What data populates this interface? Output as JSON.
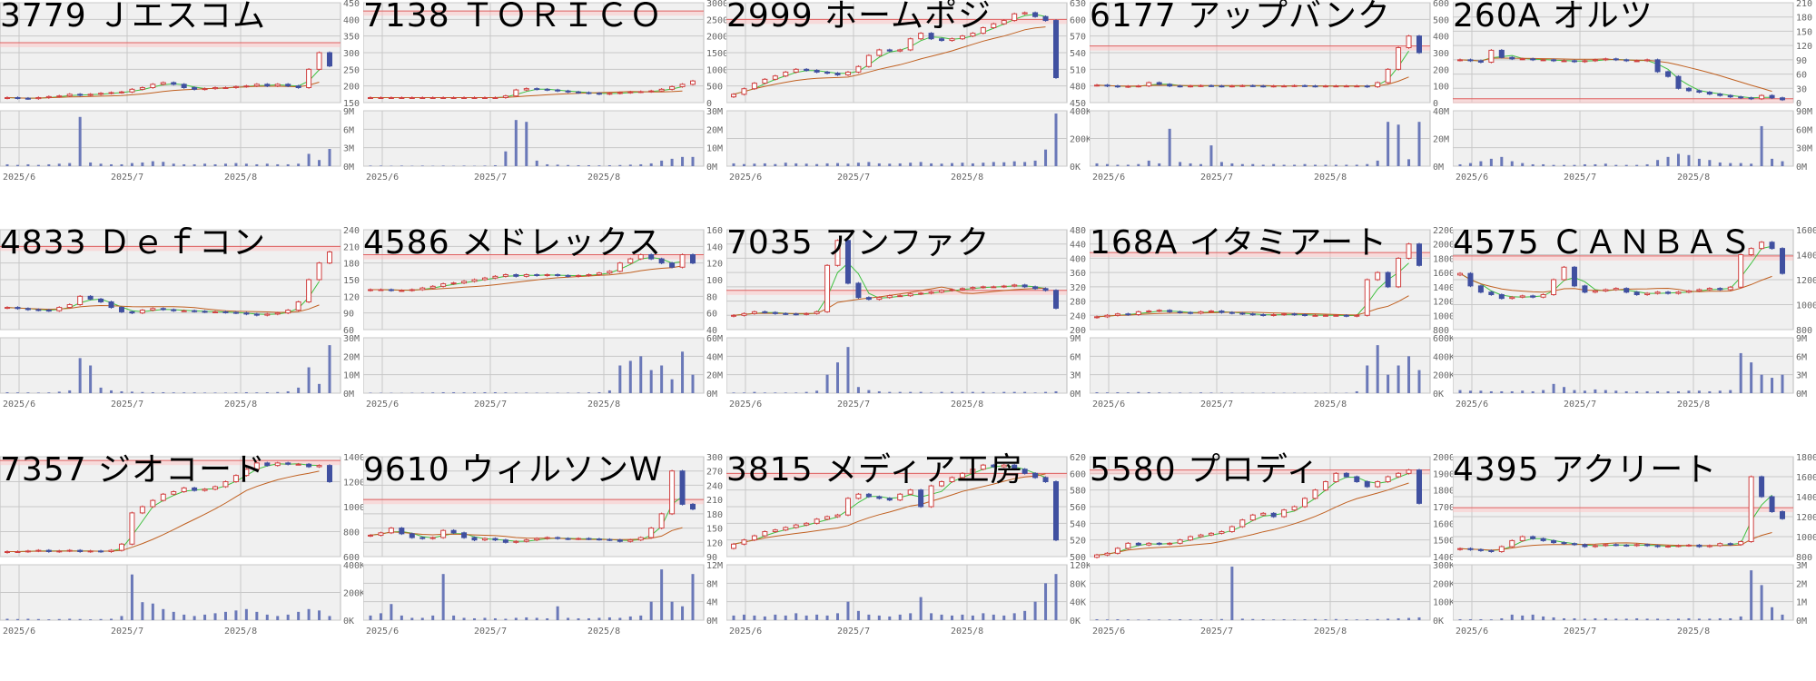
{
  "chart_data": [
    {
      "type": "candlestick",
      "title": "3779 Ｊエスコム",
      "price_ticks": [
        450,
        400,
        350,
        300,
        250,
        200,
        150
      ],
      "volume_ticks": [
        "9M",
        "6M",
        "3M",
        "0M"
      ],
      "volume_max": 9,
      "x_ticks": [
        "2025/6",
        "2025/7",
        "2025/8"
      ],
      "ref_line": 330,
      "closes": [
        165,
        163,
        162,
        165,
        168,
        170,
        175,
        172,
        175,
        178,
        180,
        182,
        190,
        195,
        205,
        210,
        205,
        195,
        190,
        192,
        195,
        195,
        198,
        200,
        205,
        200,
        205,
        200,
        195,
        250,
        300,
        260
      ],
      "volumes": [
        0.3,
        0.2,
        0.3,
        0.2,
        0.3,
        0.4,
        0.5,
        8,
        0.6,
        0.4,
        0.3,
        0.3,
        0.5,
        0.6,
        0.8,
        0.7,
        0.4,
        0.3,
        0.3,
        0.4,
        0.3,
        0.4,
        0.5,
        0.4,
        0.3,
        0.4,
        0.3,
        0.3,
        0.4,
        2,
        1,
        2.8
      ]
    },
    {
      "type": "candlestick",
      "title": "7138 ＴＯＲＩＣＯ",
      "price_ticks": [
        3000,
        2500,
        2000,
        1500,
        1000,
        500,
        0
      ],
      "volume_ticks": [
        "30M",
        "20M",
        "10M",
        "0M"
      ],
      "volume_max": 30,
      "x_ticks": [
        "2025/6",
        "2025/7",
        "2025/8"
      ],
      "ref_line": 2750,
      "closes": [
        150,
        150,
        150,
        150,
        150,
        150,
        150,
        150,
        150,
        150,
        150,
        150,
        150,
        200,
        380,
        420,
        400,
        380,
        350,
        320,
        300,
        280,
        260,
        280,
        300,
        320,
        330,
        350,
        400,
        480,
        550,
        650
      ],
      "volumes": [
        0.3,
        0.3,
        0.2,
        0.3,
        0.2,
        0.3,
        0.2,
        0.3,
        0.2,
        0.3,
        0.2,
        0.3,
        0.5,
        8,
        25,
        24,
        3,
        1,
        0.8,
        0.6,
        0.5,
        0.5,
        0.4,
        0.5,
        0.6,
        0.8,
        1,
        1.5,
        3,
        4,
        5,
        5
      ]
    },
    {
      "type": "candlestick",
      "title": "2999 ホームポジ",
      "price_ticks": [
        630,
        600,
        570,
        540,
        510,
        480,
        450
      ],
      "volume_ticks": [
        "400K",
        "200K",
        "0K"
      ],
      "volume_max": 400,
      "x_ticks": [
        "2025/6",
        "2025/7",
        "2025/8"
      ],
      "ref_line": 600,
      "closes": [
        465,
        475,
        485,
        492,
        498,
        505,
        510,
        508,
        505,
        503,
        500,
        505,
        515,
        535,
        545,
        543,
        545,
        565,
        575,
        565,
        562,
        565,
        570,
        575,
        585,
        592,
        598,
        610,
        612,
        605,
        598,
        495
      ],
      "volumes": [
        20,
        15,
        18,
        20,
        15,
        25,
        20,
        18,
        15,
        20,
        22,
        18,
        25,
        30,
        20,
        18,
        20,
        25,
        30,
        20,
        18,
        22,
        25,
        20,
        25,
        30,
        28,
        35,
        30,
        40,
        120,
        380
      ]
    },
    {
      "type": "candlestick",
      "title": "6177 アップバンク",
      "price_ticks": [
        600,
        500,
        400,
        300,
        200,
        100,
        0
      ],
      "volume_ticks": [
        "40M",
        "20M",
        "0M"
      ],
      "volume_max": 40,
      "x_ticks": [
        "2025/6",
        "2025/7",
        "2025/8"
      ],
      "ref_line": 340,
      "closes": [
        105,
        100,
        95,
        98,
        100,
        120,
        110,
        100,
        98,
        100,
        102,
        100,
        98,
        100,
        102,
        100,
        98,
        100,
        100,
        102,
        100,
        98,
        100,
        100,
        100,
        100,
        95,
        120,
        200,
        330,
        400,
        300
      ],
      "volumes": [
        2,
        1.5,
        1,
        1,
        1.5,
        4,
        2,
        27,
        3,
        2,
        1.5,
        15,
        3,
        2,
        1.5,
        1.5,
        1,
        1.5,
        1,
        1,
        1.5,
        1,
        1,
        1,
        1,
        1,
        1.5,
        4,
        32,
        30,
        5,
        32
      ]
    },
    {
      "type": "candlestick",
      "title": "260A オルツ",
      "price_ticks": [
        210,
        180,
        150,
        120,
        90,
        60,
        30,
        0
      ],
      "volume_ticks": [
        "90M",
        "60M",
        "30M",
        "0M"
      ],
      "volume_max": 90,
      "x_ticks": [
        "2025/6",
        "2025/7",
        "2025/8"
      ],
      "ref_line": 8,
      "closes": [
        90,
        88,
        85,
        110,
        95,
        92,
        92,
        90,
        90,
        88,
        88,
        86,
        88,
        90,
        92,
        90,
        88,
        88,
        90,
        65,
        55,
        30,
        25,
        22,
        18,
        15,
        12,
        10,
        8,
        15,
        10,
        6
      ],
      "volumes": [
        3,
        5,
        8,
        12,
        15,
        8,
        5,
        3,
        3,
        2,
        2,
        2,
        3,
        3,
        4,
        2,
        2,
        2,
        3,
        10,
        15,
        20,
        18,
        12,
        10,
        6,
        5,
        5,
        4,
        65,
        12,
        8
      ]
    },
    {
      "type": "candlestick",
      "title": "4833 Ｄｅｆコン",
      "price_ticks": [
        240,
        210,
        180,
        150,
        120,
        90,
        60
      ],
      "volume_ticks": [
        "30M",
        "20M",
        "10M",
        "0M"
      ],
      "volume_max": 30,
      "x_ticks": [
        "2025/6",
        "2025/7",
        "2025/8"
      ],
      "ref_line": 210,
      "closes": [
        100,
        98,
        96,
        95,
        94,
        100,
        105,
        120,
        115,
        110,
        100,
        92,
        90,
        95,
        98,
        96,
        94,
        94,
        93,
        92,
        92,
        91,
        90,
        88,
        86,
        88,
        90,
        95,
        110,
        150,
        180,
        200
      ],
      "volumes": [
        0.5,
        0.4,
        0.4,
        0.3,
        0.4,
        0.8,
        1.5,
        19,
        15,
        3,
        1.5,
        1,
        0.8,
        0.6,
        0.5,
        0.5,
        0.4,
        0.4,
        0.4,
        0.3,
        0.3,
        0.3,
        0.4,
        0.5,
        0.4,
        0.5,
        0.6,
        1,
        3,
        14,
        5,
        26
      ]
    },
    {
      "type": "candlestick",
      "title": "4586 メドレックス",
      "price_ticks": [
        160,
        140,
        120,
        100,
        80,
        60,
        40
      ],
      "volume_ticks": [
        "60M",
        "40M",
        "20M",
        "0M"
      ],
      "volume_max": 60,
      "x_ticks": [
        "2025/6",
        "2025/7",
        "2025/8"
      ],
      "ref_line": 130,
      "closes": [
        88,
        88,
        87,
        87,
        88,
        90,
        92,
        95,
        96,
        98,
        100,
        102,
        104,
        106,
        104,
        106,
        105,
        106,
        105,
        104,
        105,
        106,
        108,
        110,
        120,
        125,
        130,
        125,
        120,
        115,
        130,
        120
      ],
      "volumes": [
        0.5,
        0.4,
        0.4,
        0.3,
        0.5,
        0.6,
        0.8,
        1,
        1,
        0.8,
        0.8,
        1,
        1,
        0.8,
        0.6,
        0.6,
        0.5,
        0.5,
        0.5,
        0.5,
        0.6,
        0.8,
        1,
        3,
        30,
        35,
        40,
        25,
        30,
        15,
        45,
        20
      ]
    },
    {
      "type": "candlestick",
      "title": "7035 アンファク",
      "price_ticks": [
        480,
        440,
        400,
        360,
        320,
        280,
        240,
        200
      ],
      "volume_ticks": [
        "9M",
        "6M",
        "3M",
        "0M"
      ],
      "volume_max": 9,
      "x_ticks": [
        "2025/6",
        "2025/7",
        "2025/8"
      ],
      "ref_line": 310,
      "closes": [
        240,
        245,
        250,
        248,
        245,
        244,
        243,
        245,
        250,
        380,
        450,
        330,
        290,
        285,
        290,
        295,
        295,
        300,
        302,
        305,
        310,
        312,
        315,
        318,
        320,
        320,
        322,
        325,
        320,
        315,
        310,
        260
      ],
      "volumes": [
        0.1,
        0.1,
        0.2,
        0.1,
        0.1,
        0.1,
        0.1,
        0.2,
        0.4,
        3,
        5,
        7.5,
        1,
        0.5,
        0.3,
        0.2,
        0.2,
        0.2,
        0.2,
        0.1,
        0.2,
        0.2,
        0.2,
        0.2,
        0.2,
        0.1,
        0.2,
        0.2,
        0.2,
        0.1,
        0.2,
        0.3
      ]
    },
    {
      "type": "candlestick",
      "title": "168A イタミアート",
      "price_ticks": [
        2200,
        2000,
        1800,
        1600,
        1400,
        1200,
        1000,
        800
      ],
      "volume_ticks": [
        "600K",
        "400K",
        "200K",
        "0K"
      ],
      "volume_max": 600,
      "x_ticks": [
        "2025/6",
        "2025/7",
        "2025/8"
      ],
      "ref_line": 1880,
      "closes": [
        980,
        1000,
        1020,
        1010,
        1050,
        1060,
        1070,
        1050,
        1040,
        1030,
        1050,
        1060,
        1040,
        1030,
        1020,
        1010,
        1000,
        1010,
        1020,
        1010,
        1000,
        1000,
        1000,
        1000,
        990,
        1000,
        1500,
        1600,
        1400,
        1800,
        2000,
        1700
      ],
      "volumes": [
        10,
        8,
        10,
        8,
        12,
        10,
        8,
        6,
        6,
        5,
        8,
        6,
        5,
        5,
        4,
        4,
        4,
        5,
        4,
        4,
        3,
        3,
        3,
        3,
        4,
        20,
        300,
        520,
        200,
        300,
        400,
        250
      ]
    },
    {
      "type": "candlestick",
      "title": "4575 ＣＡＮＢＡＳ",
      "price_ticks": [
        1600,
        1400,
        1200,
        1000,
        800
      ],
      "volume_ticks": [
        "9M",
        "6M",
        "3M",
        "0M"
      ],
      "volume_max": 9,
      "x_ticks": [
        "2025/6",
        "2025/7",
        "2025/8"
      ],
      "ref_line": 1390,
      "closes": [
        1250,
        1150,
        1100,
        1080,
        1050,
        1060,
        1070,
        1060,
        1080,
        1200,
        1300,
        1150,
        1100,
        1110,
        1120,
        1130,
        1100,
        1080,
        1090,
        1100,
        1090,
        1100,
        1110,
        1120,
        1130,
        1120,
        1140,
        1400,
        1450,
        1500,
        1450,
        1250
      ],
      "volumes": [
        0.5,
        0.4,
        0.4,
        0.3,
        0.3,
        0.3,
        0.4,
        0.3,
        0.5,
        1.5,
        1,
        0.5,
        0.4,
        0.6,
        0.5,
        0.4,
        0.3,
        0.3,
        0.3,
        0.3,
        0.3,
        0.3,
        0.4,
        0.4,
        0.3,
        0.4,
        0.5,
        6.5,
        5,
        3,
        2.5,
        3
      ]
    },
    {
      "type": "candlestick",
      "title": "7357 ジオコード",
      "price_ticks": [
        1400,
        1200,
        1000,
        800,
        600
      ],
      "volume_ticks": [
        "400K",
        "200K",
        "0K"
      ],
      "volume_max": 400,
      "x_ticks": [
        "2025/6",
        "2025/7",
        "2025/8"
      ],
      "ref_line": 1370,
      "closes": [
        640,
        640,
        645,
        650,
        640,
        645,
        650,
        640,
        645,
        640,
        650,
        700,
        950,
        1000,
        1050,
        1100,
        1120,
        1150,
        1130,
        1140,
        1160,
        1200,
        1250,
        1300,
        1350,
        1330,
        1350,
        1340,
        1340,
        1320,
        1330,
        1200
      ],
      "volumes": [
        10,
        8,
        10,
        8,
        6,
        8,
        10,
        8,
        6,
        8,
        10,
        30,
        330,
        130,
        120,
        80,
        60,
        40,
        30,
        40,
        50,
        60,
        70,
        80,
        60,
        40,
        30,
        40,
        60,
        80,
        70,
        30
      ]
    },
    {
      "type": "candlestick",
      "title": "9610 ウィルソンＷ",
      "price_ticks": [
        300,
        270,
        240,
        210,
        180,
        150,
        120,
        90
      ],
      "volume_ticks": [
        "12M",
        "8M",
        "4M",
        "0M"
      ],
      "volume_max": 12,
      "x_ticks": [
        "2025/6",
        "2025/7",
        "2025/8"
      ],
      "ref_line": 210,
      "closes": [
        135,
        140,
        150,
        138,
        130,
        128,
        130,
        145,
        140,
        130,
        125,
        128,
        125,
        120,
        122,
        125,
        128,
        130,
        128,
        127,
        128,
        127,
        126,
        125,
        122,
        125,
        130,
        150,
        180,
        270,
        200,
        190
      ],
      "volumes": [
        1,
        1.5,
        3.5,
        1,
        0.5,
        0.5,
        1,
        10,
        1,
        0.5,
        0.4,
        0.5,
        0.4,
        0.3,
        0.5,
        0.6,
        0.5,
        0.4,
        3,
        0.5,
        0.4,
        0.4,
        0.5,
        0.6,
        0.5,
        0.8,
        1,
        4,
        11,
        4,
        3,
        10
      ]
    },
    {
      "type": "candlestick",
      "title": "3815 メディア工房",
      "price_ticks": [
        620,
        600,
        580,
        560,
        540,
        520,
        500
      ],
      "volume_ticks": [
        "120K",
        "80K",
        "40K",
        "0K"
      ],
      "volume_max": 120,
      "x_ticks": [
        "2025/6",
        "2025/7",
        "2025/8"
      ],
      "ref_line": 600,
      "closes": [
        515,
        520,
        525,
        530,
        532,
        535,
        538,
        540,
        545,
        548,
        550,
        570,
        575,
        572,
        570,
        568,
        575,
        580,
        560,
        585,
        590,
        595,
        600,
        605,
        610,
        608,
        610,
        605,
        600,
        595,
        590,
        520
      ],
      "volumes": [
        10,
        12,
        10,
        8,
        12,
        10,
        15,
        10,
        12,
        10,
        15,
        40,
        20,
        12,
        10,
        8,
        12,
        15,
        50,
        15,
        12,
        10,
        12,
        10,
        15,
        12,
        10,
        15,
        20,
        40,
        80,
        100
      ]
    },
    {
      "type": "candlestick",
      "title": "5580 プロディ",
      "price_ticks": [
        2000,
        1900,
        1800,
        1700,
        1600,
        1500,
        1400
      ],
      "volume_ticks": [
        "300K",
        "200K",
        "100K",
        "0K"
      ],
      "volume_max": 300,
      "x_ticks": [
        "2025/6",
        "2025/7",
        "2025/8"
      ],
      "ref_line": 1920,
      "closes": [
        1410,
        1420,
        1450,
        1480,
        1470,
        1480,
        1475,
        1480,
        1500,
        1520,
        1530,
        1540,
        1550,
        1580,
        1620,
        1650,
        1660,
        1640,
        1680,
        1700,
        1750,
        1800,
        1850,
        1900,
        1880,
        1850,
        1820,
        1850,
        1880,
        1900,
        1920,
        1720
      ],
      "volumes": [
        5,
        4,
        5,
        4,
        3,
        4,
        3,
        4,
        5,
        4,
        5,
        4,
        6,
        290,
        8,
        6,
        5,
        4,
        5,
        4,
        5,
        6,
        5,
        6,
        5,
        4,
        5,
        6,
        8,
        10,
        12,
        15
      ]
    },
    {
      "type": "candlestick",
      "title": "4395 アクリート",
      "price_ticks": [
        1800,
        1600,
        1400,
        1200,
        1000,
        800
      ],
      "volume_ticks": [
        "3M",
        "2M",
        "1M",
        "0M"
      ],
      "volume_max": 3,
      "x_ticks": [
        "2025/6",
        "2025/7",
        "2025/8"
      ],
      "ref_line": 1290,
      "closes": [
        880,
        870,
        860,
        850,
        900,
        960,
        1000,
        980,
        960,
        940,
        930,
        920,
        900,
        910,
        920,
        915,
        910,
        920,
        910,
        900,
        905,
        910,
        915,
        900,
        910,
        930,
        920,
        950,
        1600,
        1400,
        1250,
        1180
      ],
      "volumes": [
        0.05,
        0.05,
        0.05,
        0.04,
        0.1,
        0.3,
        0.25,
        0.3,
        0.2,
        0.15,
        0.1,
        0.1,
        0.08,
        0.1,
        0.1,
        0.08,
        0.08,
        0.1,
        0.08,
        0.08,
        0.06,
        0.08,
        0.1,
        0.08,
        0.08,
        0.1,
        0.1,
        0.2,
        2.7,
        1.9,
        0.7,
        0.3
      ]
    }
  ],
  "colors": {
    "up": "#d04040",
    "down": "#4050a0",
    "volume": "#6a78b8",
    "ma_short": "#40c040",
    "ma_long": "#c06020",
    "ref_line": "#e06060",
    "panel_bg": "#f0f0f0",
    "grid": "#c8c8c8"
  }
}
